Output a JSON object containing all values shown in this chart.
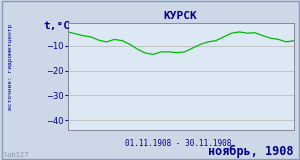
{
  "title": "КУРСК",
  "ylabel": "t,°C",
  "xlabel": "01.11.1908 - 30.11.1908",
  "footer": "ноябрь, 1908",
  "source_label": "источник: гидрометцентр",
  "ylim": [
    -44,
    -1
  ],
  "yticks": [
    -10,
    -20,
    -30,
    -40
  ],
  "line_color": "#00bb00",
  "bg_color": "#ccd8e8",
  "plot_bg": "#dce8f4",
  "border_color": "#8899bb",
  "title_color": "#000088",
  "label_color": "#000088",
  "tick_color": "#000088",
  "footer_color": "#000088",
  "source_color": "#000088",
  "watermark": "lab127",
  "days": [
    1,
    2,
    3,
    4,
    5,
    6,
    7,
    8,
    9,
    10,
    11,
    12,
    13,
    14,
    15,
    16,
    17,
    18,
    19,
    20,
    21,
    22,
    23,
    24,
    25,
    26,
    27,
    28,
    29,
    30
  ],
  "temps": [
    -4.5,
    -5.2,
    -6.0,
    -6.5,
    -7.8,
    -8.5,
    -7.5,
    -8.0,
    -9.5,
    -11.5,
    -13.0,
    -13.5,
    -12.5,
    -12.5,
    -12.8,
    -12.5,
    -11.0,
    -9.5,
    -8.5,
    -8.0,
    -6.5,
    -5.0,
    -4.5,
    -5.0,
    -4.8,
    -6.0,
    -7.0,
    -7.5,
    -8.5,
    -8.0
  ]
}
